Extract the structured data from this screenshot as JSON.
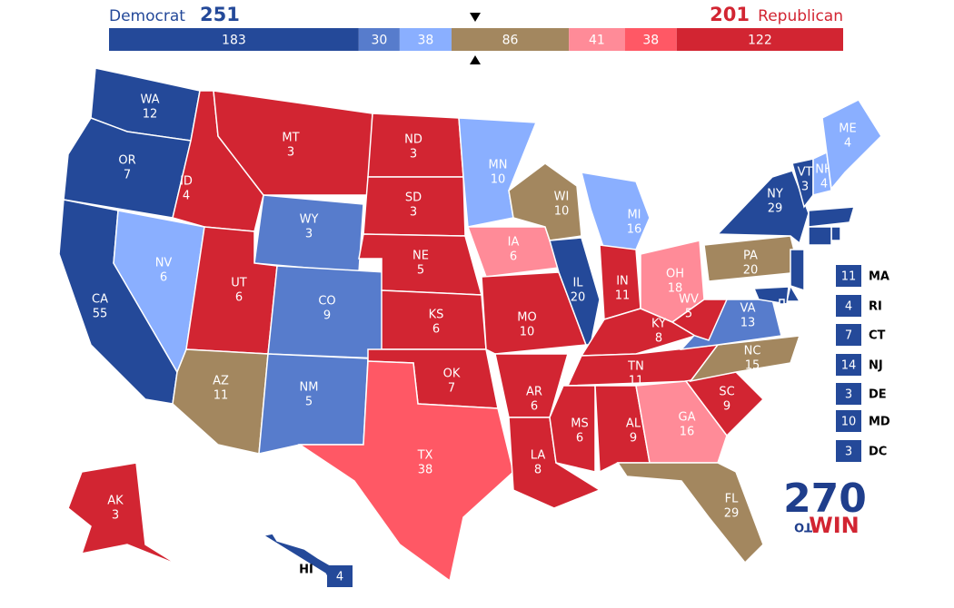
{
  "header": {
    "dem_label": "Democrat",
    "dem_total": 251,
    "rep_total": 201,
    "rep_label": "Republican"
  },
  "bar": {
    "segments": [
      {
        "value": 183,
        "color": "#244999"
      },
      {
        "value": 30,
        "color": "#577ccc"
      },
      {
        "value": 38,
        "color": "#8aafff"
      },
      {
        "value": 86,
        "color": "#a3875f"
      },
      {
        "value": 41,
        "color": "#ff8b98"
      },
      {
        "value": 38,
        "color": "#ff5865"
      },
      {
        "value": 122,
        "color": "#d22532"
      }
    ]
  },
  "states": [
    {
      "abbr": "WA",
      "votes": 12,
      "color": "#244999"
    },
    {
      "abbr": "OR",
      "votes": 7,
      "color": "#244999"
    },
    {
      "abbr": "CA",
      "votes": 55,
      "color": "#244999"
    },
    {
      "abbr": "NV",
      "votes": 6,
      "color": "#8aafff"
    },
    {
      "abbr": "ID",
      "votes": 4,
      "color": "#d22532"
    },
    {
      "abbr": "MT",
      "votes": 3,
      "color": "#d22532"
    },
    {
      "abbr": "WY",
      "votes": 3,
      "color": "#577ccc"
    },
    {
      "abbr": "UT",
      "votes": 6,
      "color": "#d22532"
    },
    {
      "abbr": "CO",
      "votes": 9,
      "color": "#577ccc"
    },
    {
      "abbr": "AZ",
      "votes": 11,
      "color": "#a3875f"
    },
    {
      "abbr": "NM",
      "votes": 5,
      "color": "#577ccc"
    },
    {
      "abbr": "ND",
      "votes": 3,
      "color": "#d22532"
    },
    {
      "abbr": "SD",
      "votes": 3,
      "color": "#d22532"
    },
    {
      "abbr": "NE",
      "votes": 5,
      "color": "#d22532"
    },
    {
      "abbr": "KS",
      "votes": 6,
      "color": "#d22532"
    },
    {
      "abbr": "OK",
      "votes": 7,
      "color": "#d22532"
    },
    {
      "abbr": "TX",
      "votes": 38,
      "color": "#ff5865"
    },
    {
      "abbr": "MN",
      "votes": 10,
      "color": "#8aafff"
    },
    {
      "abbr": "IA",
      "votes": 6,
      "color": "#ff8b98"
    },
    {
      "abbr": "MO",
      "votes": 10,
      "color": "#d22532"
    },
    {
      "abbr": "AR",
      "votes": 6,
      "color": "#d22532"
    },
    {
      "abbr": "LA",
      "votes": 8,
      "color": "#d22532"
    },
    {
      "abbr": "WI",
      "votes": 10,
      "color": "#a3875f"
    },
    {
      "abbr": "IL",
      "votes": 20,
      "color": "#244999"
    },
    {
      "abbr": "MI",
      "votes": 16,
      "color": "#8aafff"
    },
    {
      "abbr": "IN",
      "votes": 11,
      "color": "#d22532"
    },
    {
      "abbr": "OH",
      "votes": 18,
      "color": "#ff8b98"
    },
    {
      "abbr": "KY",
      "votes": 8,
      "color": "#d22532"
    },
    {
      "abbr": "TN",
      "votes": 11,
      "color": "#d22532"
    },
    {
      "abbr": "MS",
      "votes": 6,
      "color": "#d22532"
    },
    {
      "abbr": "AL",
      "votes": 9,
      "color": "#d22532"
    },
    {
      "abbr": "GA",
      "votes": 16,
      "color": "#ff8b98"
    },
    {
      "abbr": "FL",
      "votes": 29,
      "color": "#a3875f"
    },
    {
      "abbr": "SC",
      "votes": 9,
      "color": "#d22532"
    },
    {
      "abbr": "NC",
      "votes": 15,
      "color": "#a3875f"
    },
    {
      "abbr": "VA",
      "votes": 13,
      "color": "#577ccc"
    },
    {
      "abbr": "WV",
      "votes": 5,
      "color": "#d22532"
    },
    {
      "abbr": "PA",
      "votes": 20,
      "color": "#a3875f"
    },
    {
      "abbr": "NY",
      "votes": 29,
      "color": "#244999"
    },
    {
      "abbr": "VT",
      "votes": 3,
      "color": "#244999"
    },
    {
      "abbr": "NH",
      "votes": 4,
      "color": "#8aafff"
    },
    {
      "abbr": "ME",
      "votes": 4,
      "color": "#8aafff"
    },
    {
      "abbr": "AK",
      "votes": 3,
      "color": "#d22532"
    },
    {
      "abbr": "HI",
      "votes": 4,
      "color": "#244999"
    },
    {
      "abbr": "MA",
      "votes": 11,
      "color": "#244999"
    },
    {
      "abbr": "RI",
      "votes": 4,
      "color": "#244999"
    },
    {
      "abbr": "CT",
      "votes": 7,
      "color": "#244999"
    },
    {
      "abbr": "NJ",
      "votes": 14,
      "color": "#244999"
    },
    {
      "abbr": "DE",
      "votes": 3,
      "color": "#244999"
    },
    {
      "abbr": "MD",
      "votes": 10,
      "color": "#244999"
    },
    {
      "abbr": "DC",
      "votes": 3,
      "color": "#244999"
    }
  ],
  "logo": {
    "number": "270",
    "to": "TO",
    "win": "WIN"
  }
}
